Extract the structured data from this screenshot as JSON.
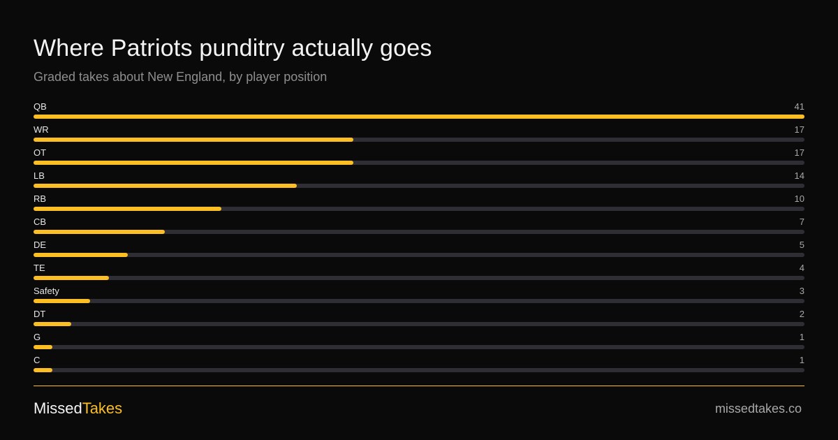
{
  "chart_data": {
    "type": "bar",
    "orientation": "horizontal",
    "title": "Where Patriots punditry actually goes",
    "subtitle": "Graded takes about New England, by player position",
    "categories": [
      "QB",
      "WR",
      "OT",
      "LB",
      "RB",
      "CB",
      "DE",
      "TE",
      "Safety",
      "DT",
      "G",
      "C"
    ],
    "values": [
      41,
      17,
      17,
      14,
      10,
      7,
      5,
      4,
      3,
      2,
      1,
      1
    ],
    "xlim": [
      0,
      41
    ],
    "grid": false,
    "legend": "none"
  },
  "footer": {
    "brand_part1": "Missed",
    "brand_part2": "Takes",
    "site": "missedtakes.co"
  },
  "colors": {
    "background": "#0a0a0a",
    "accent": "#fbbf24",
    "track": "#2e2e34",
    "muted_text": "#8e8e8e"
  }
}
